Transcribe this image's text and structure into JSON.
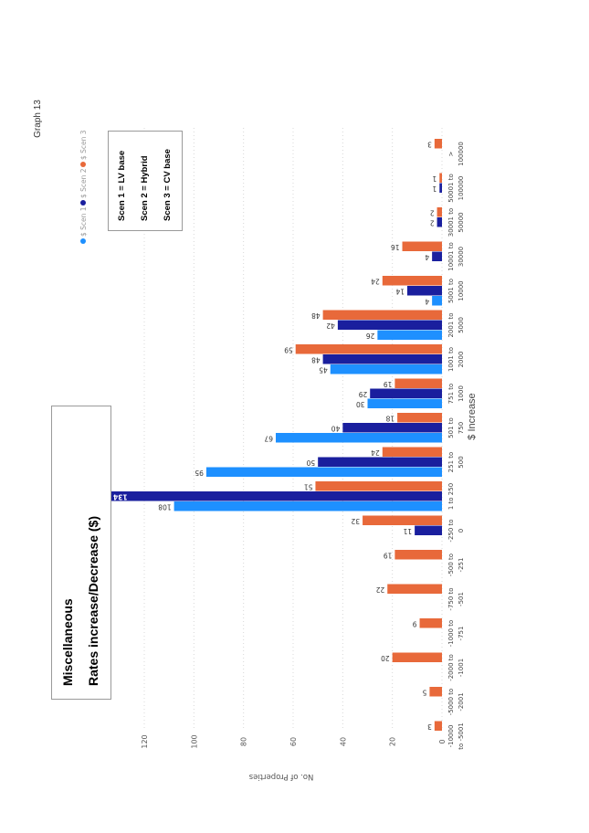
{
  "page_label": "Graph 13",
  "title_box": {
    "line1": "Miscellaneous",
    "line2": "Rates increase/Decrease ($)"
  },
  "key_box": {
    "lines": [
      "Scen 1 = LV base",
      "Scen 2 = Hybrid",
      "Scen 3 = CV base"
    ]
  },
  "chart_data": {
    "type": "bar",
    "orientation": "rotated 90 degrees clockwise (printed landscape chart)",
    "title": "Miscellaneous Rates increase/Decrease ($)",
    "xlabel": "$ Increase",
    "ylabel": "No. of Properties",
    "ylim": [
      0,
      120
    ],
    "yticks": [
      0,
      20,
      40,
      60,
      80,
      100,
      120
    ],
    "grid": true,
    "legend_position": "top-left",
    "categories": [
      "-10000 to -5001",
      "-5000 to -2001",
      "-2000 to -1001",
      "-1000 to -751",
      "-750 to -501",
      "-500 to -251",
      "-250 to 0",
      "1 to 250",
      "251 to 500",
      "501 to 750",
      "751 to 1000",
      "1001 to 2000",
      "2001 to 5000",
      "5001 to 10000",
      "10001 to 30000",
      "30001 to 50000",
      "50001 to 100000",
      "> 100000"
    ],
    "category_labels": [
      [
        "-10000",
        "to -5001"
      ],
      [
        "-5000 to",
        "-2001"
      ],
      [
        "-2000 to",
        "-1001"
      ],
      [
        "-1000 to",
        "-751"
      ],
      [
        "-750 to",
        "-501"
      ],
      [
        "-500 to",
        "-251"
      ],
      [
        "-250 to",
        "0"
      ],
      [
        "1 to 250",
        ""
      ],
      [
        "251 to",
        "500"
      ],
      [
        "501 to",
        "750"
      ],
      [
        "751 to",
        "1000"
      ],
      [
        "1001 to",
        "2000"
      ],
      [
        "2001 to",
        "5000"
      ],
      [
        "5001 to",
        "10000"
      ],
      [
        "10001 to",
        "30000"
      ],
      [
        "30001 to",
        "50000"
      ],
      [
        "50001 to",
        "100000"
      ],
      [
        ">",
        "100000"
      ]
    ],
    "series": [
      {
        "name": "$ Scen 1",
        "color": "#1E90FF",
        "values": [
          null,
          null,
          null,
          null,
          null,
          null,
          null,
          108,
          95,
          67,
          30,
          45,
          26,
          4,
          null,
          null,
          null,
          null
        ]
      },
      {
        "name": "$ Scen 2",
        "color": "#1A1F9E",
        "values": [
          null,
          null,
          null,
          null,
          null,
          null,
          11,
          134,
          50,
          40,
          29,
          48,
          42,
          14,
          4,
          2,
          1,
          null
        ]
      },
      {
        "name": "$ Scen 3",
        "color": "#E8693A",
        "values": [
          3,
          5,
          20,
          9,
          22,
          19,
          32,
          51,
          24,
          18,
          19,
          59,
          48,
          24,
          16,
          2,
          1,
          3
        ]
      }
    ]
  }
}
